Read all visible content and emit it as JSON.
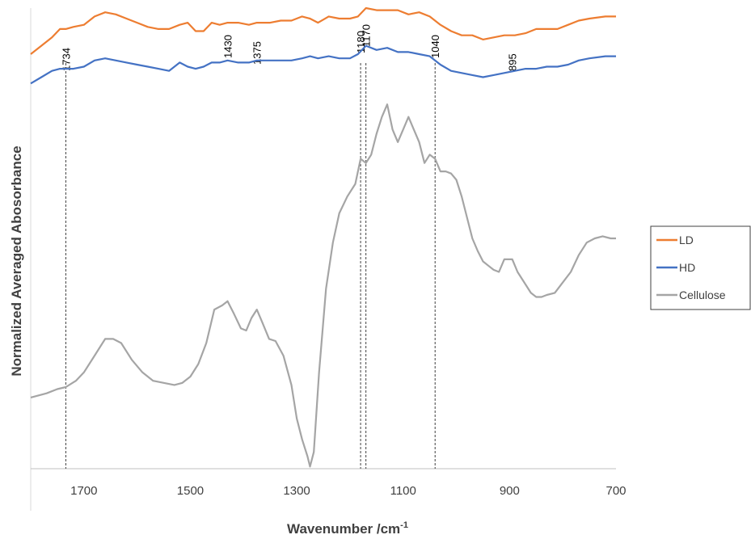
{
  "chart_data": {
    "type": "line",
    "xlabel": "Wavenumber /cm",
    "xlabel_sup": "-1",
    "ylabel": "Normalized Averaged Abosorbance",
    "x_reversed": true,
    "xlim": [
      1800,
      700
    ],
    "ylim": [
      -1.5,
      9.5
    ],
    "x_ticks": [
      1700,
      1500,
      1300,
      1100,
      900,
      700
    ],
    "y_ticks_shown": false,
    "gridlines": false,
    "legend_position": "right",
    "peak_markers": [
      {
        "x": 1734,
        "label": "1734"
      },
      {
        "x": 1430,
        "label": "1430"
      },
      {
        "x": 1375,
        "label": "1375"
      },
      {
        "x": 1180,
        "label": "1180"
      },
      {
        "x": 1170,
        "label": "1170"
      },
      {
        "x": 1040,
        "label": "1040"
      },
      {
        "x": 895,
        "label": "895"
      }
    ],
    "dashed_guides_at": [
      1734,
      1180,
      1170,
      1040
    ],
    "series": [
      {
        "name": "LD",
        "color": "#ED7D31",
        "points": [
          [
            1800,
            8.4
          ],
          [
            1780,
            8.6
          ],
          [
            1760,
            8.8
          ],
          [
            1745,
            9.0
          ],
          [
            1734,
            9.0
          ],
          [
            1720,
            9.05
          ],
          [
            1700,
            9.1
          ],
          [
            1680,
            9.3
          ],
          [
            1660,
            9.4
          ],
          [
            1640,
            9.35
          ],
          [
            1620,
            9.25
          ],
          [
            1600,
            9.15
          ],
          [
            1580,
            9.05
          ],
          [
            1560,
            9.0
          ],
          [
            1540,
            9.0
          ],
          [
            1520,
            9.1
          ],
          [
            1505,
            9.15
          ],
          [
            1490,
            8.95
          ],
          [
            1475,
            8.95
          ],
          [
            1460,
            9.15
          ],
          [
            1445,
            9.1
          ],
          [
            1430,
            9.15
          ],
          [
            1410,
            9.15
          ],
          [
            1390,
            9.1
          ],
          [
            1375,
            9.15
          ],
          [
            1350,
            9.15
          ],
          [
            1330,
            9.2
          ],
          [
            1310,
            9.2
          ],
          [
            1290,
            9.3
          ],
          [
            1275,
            9.25
          ],
          [
            1260,
            9.15
          ],
          [
            1240,
            9.3
          ],
          [
            1220,
            9.25
          ],
          [
            1200,
            9.25
          ],
          [
            1185,
            9.3
          ],
          [
            1170,
            9.5
          ],
          [
            1150,
            9.45
          ],
          [
            1130,
            9.45
          ],
          [
            1110,
            9.45
          ],
          [
            1090,
            9.35
          ],
          [
            1070,
            9.4
          ],
          [
            1050,
            9.3
          ],
          [
            1030,
            9.1
          ],
          [
            1010,
            8.95
          ],
          [
            990,
            8.85
          ],
          [
            970,
            8.85
          ],
          [
            950,
            8.75
          ],
          [
            930,
            8.8
          ],
          [
            910,
            8.85
          ],
          [
            890,
            8.85
          ],
          [
            870,
            8.9
          ],
          [
            850,
            9.0
          ],
          [
            830,
            9.0
          ],
          [
            810,
            9.0
          ],
          [
            790,
            9.1
          ],
          [
            770,
            9.2
          ],
          [
            750,
            9.25
          ],
          [
            720,
            9.3
          ],
          [
            700,
            9.3
          ]
        ]
      },
      {
        "name": "HD",
        "color": "#4472C4",
        "points": [
          [
            1800,
            7.7
          ],
          [
            1780,
            7.85
          ],
          [
            1760,
            8.0
          ],
          [
            1745,
            8.05
          ],
          [
            1734,
            8.05
          ],
          [
            1720,
            8.05
          ],
          [
            1700,
            8.1
          ],
          [
            1680,
            8.25
          ],
          [
            1660,
            8.3
          ],
          [
            1640,
            8.25
          ],
          [
            1620,
            8.2
          ],
          [
            1600,
            8.15
          ],
          [
            1580,
            8.1
          ],
          [
            1560,
            8.05
          ],
          [
            1540,
            8.0
          ],
          [
            1520,
            8.2
          ],
          [
            1505,
            8.1
          ],
          [
            1490,
            8.05
          ],
          [
            1475,
            8.1
          ],
          [
            1460,
            8.2
          ],
          [
            1445,
            8.2
          ],
          [
            1430,
            8.25
          ],
          [
            1410,
            8.2
          ],
          [
            1390,
            8.2
          ],
          [
            1375,
            8.25
          ],
          [
            1350,
            8.25
          ],
          [
            1330,
            8.25
          ],
          [
            1310,
            8.25
          ],
          [
            1290,
            8.3
          ],
          [
            1275,
            8.35
          ],
          [
            1260,
            8.3
          ],
          [
            1240,
            8.35
          ],
          [
            1220,
            8.3
          ],
          [
            1200,
            8.3
          ],
          [
            1185,
            8.4
          ],
          [
            1170,
            8.6
          ],
          [
            1150,
            8.5
          ],
          [
            1130,
            8.55
          ],
          [
            1110,
            8.45
          ],
          [
            1090,
            8.45
          ],
          [
            1070,
            8.4
          ],
          [
            1050,
            8.35
          ],
          [
            1030,
            8.15
          ],
          [
            1010,
            8.0
          ],
          [
            990,
            7.95
          ],
          [
            970,
            7.9
          ],
          [
            950,
            7.85
          ],
          [
            930,
            7.9
          ],
          [
            910,
            7.95
          ],
          [
            890,
            8.0
          ],
          [
            870,
            8.05
          ],
          [
            850,
            8.05
          ],
          [
            830,
            8.1
          ],
          [
            810,
            8.1
          ],
          [
            790,
            8.15
          ],
          [
            770,
            8.25
          ],
          [
            750,
            8.3
          ],
          [
            720,
            8.35
          ],
          [
            700,
            8.35
          ]
        ]
      },
      {
        "name": "Cellulose",
        "color": "#A5A5A5",
        "points": [
          [
            1800,
            0.2
          ],
          [
            1770,
            0.3
          ],
          [
            1750,
            0.4
          ],
          [
            1734,
            0.45
          ],
          [
            1715,
            0.6
          ],
          [
            1700,
            0.8
          ],
          [
            1680,
            1.2
          ],
          [
            1660,
            1.6
          ],
          [
            1645,
            1.6
          ],
          [
            1630,
            1.5
          ],
          [
            1610,
            1.1
          ],
          [
            1590,
            0.8
          ],
          [
            1570,
            0.6
          ],
          [
            1550,
            0.55
          ],
          [
            1530,
            0.5
          ],
          [
            1515,
            0.55
          ],
          [
            1500,
            0.7
          ],
          [
            1485,
            1.0
          ],
          [
            1470,
            1.5
          ],
          [
            1455,
            2.3
          ],
          [
            1440,
            2.4
          ],
          [
            1430,
            2.5
          ],
          [
            1418,
            2.2
          ],
          [
            1405,
            1.85
          ],
          [
            1395,
            1.8
          ],
          [
            1385,
            2.1
          ],
          [
            1375,
            2.3
          ],
          [
            1365,
            2.0
          ],
          [
            1352,
            1.6
          ],
          [
            1340,
            1.55
          ],
          [
            1325,
            1.2
          ],
          [
            1310,
            0.5
          ],
          [
            1300,
            -0.3
          ],
          [
            1290,
            -0.8
          ],
          [
            1280,
            -1.2
          ],
          [
            1275,
            -1.45
          ],
          [
            1268,
            -1.1
          ],
          [
            1258,
            0.8
          ],
          [
            1245,
            2.8
          ],
          [
            1232,
            3.9
          ],
          [
            1220,
            4.6
          ],
          [
            1205,
            5.0
          ],
          [
            1190,
            5.3
          ],
          [
            1180,
            5.9
          ],
          [
            1170,
            5.8
          ],
          [
            1160,
            6.0
          ],
          [
            1150,
            6.5
          ],
          [
            1140,
            6.9
          ],
          [
            1130,
            7.2
          ],
          [
            1120,
            6.6
          ],
          [
            1110,
            6.3
          ],
          [
            1100,
            6.6
          ],
          [
            1090,
            6.9
          ],
          [
            1080,
            6.6
          ],
          [
            1070,
            6.3
          ],
          [
            1060,
            5.8
          ],
          [
            1050,
            6.0
          ],
          [
            1040,
            5.9
          ],
          [
            1030,
            5.6
          ],
          [
            1020,
            5.6
          ],
          [
            1010,
            5.55
          ],
          [
            1000,
            5.4
          ],
          [
            990,
            5.0
          ],
          [
            980,
            4.5
          ],
          [
            970,
            4.0
          ],
          [
            960,
            3.7
          ],
          [
            950,
            3.45
          ],
          [
            940,
            3.35
          ],
          [
            930,
            3.25
          ],
          [
            920,
            3.2
          ],
          [
            910,
            3.5
          ],
          [
            895,
            3.5
          ],
          [
            885,
            3.2
          ],
          [
            870,
            2.9
          ],
          [
            860,
            2.7
          ],
          [
            850,
            2.6
          ],
          [
            840,
            2.6
          ],
          [
            830,
            2.65
          ],
          [
            815,
            2.7
          ],
          [
            800,
            2.95
          ],
          [
            785,
            3.2
          ],
          [
            770,
            3.6
          ],
          [
            755,
            3.9
          ],
          [
            740,
            4.0
          ],
          [
            725,
            4.05
          ],
          [
            710,
            4.0
          ],
          [
            700,
            4.0
          ]
        ]
      }
    ]
  }
}
